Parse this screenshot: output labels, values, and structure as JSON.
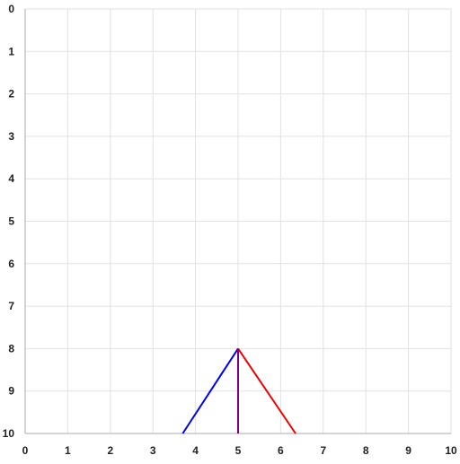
{
  "chart_data": {
    "type": "line",
    "title": "",
    "xlabel": "",
    "ylabel": "",
    "xlim": [
      0,
      10
    ],
    "ylim": [
      0,
      10
    ],
    "y_axis_inverted": true,
    "grid": true,
    "x_ticks": [
      "0",
      "1",
      "2",
      "3",
      "4",
      "5",
      "6",
      "7",
      "8",
      "9",
      "10"
    ],
    "y_ticks": [
      "0",
      "1",
      "2",
      "3",
      "4",
      "5",
      "6",
      "7",
      "8",
      "9",
      "10"
    ],
    "series": [
      {
        "color": "#0000ee",
        "points": [
          [
            3.7,
            10
          ],
          [
            5,
            8
          ]
        ]
      },
      {
        "color": "#ee0000",
        "points": [
          [
            5,
            8
          ],
          [
            6.35,
            10
          ]
        ]
      },
      {
        "color": "#800080",
        "points": [
          [
            5,
            8
          ],
          [
            5,
            10
          ]
        ]
      }
    ]
  },
  "colors": {
    "grid": "#e2e2e2",
    "axis": "#aaaaaa"
  }
}
